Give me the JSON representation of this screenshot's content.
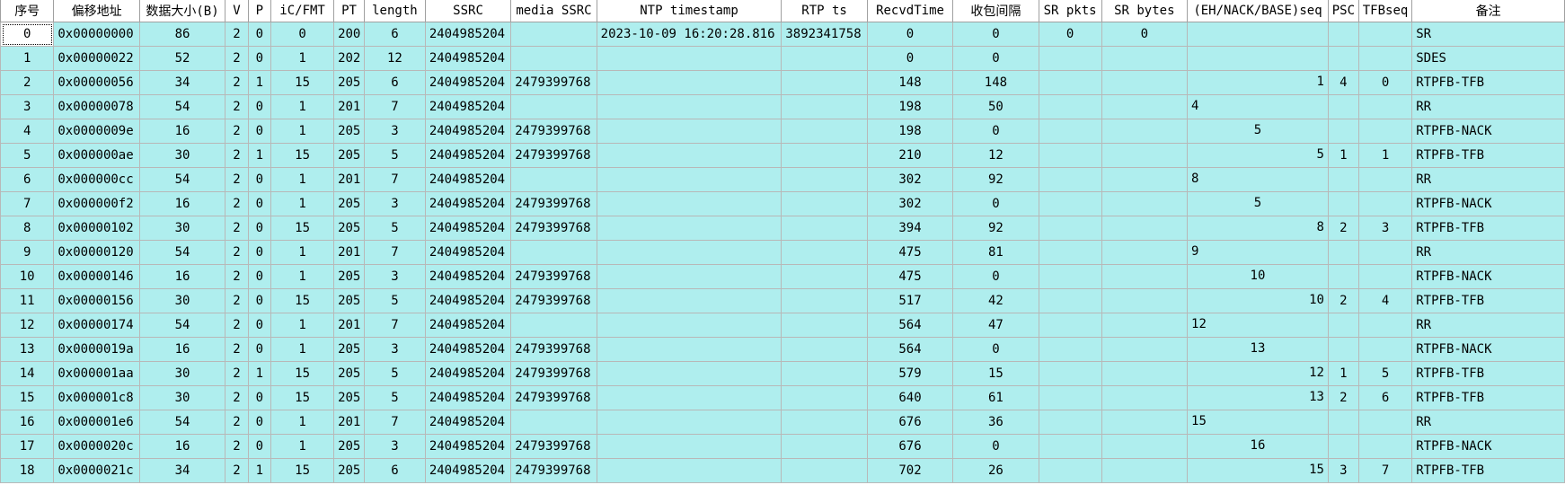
{
  "columns": [
    {
      "key": "idx",
      "label": "序号"
    },
    {
      "key": "addr",
      "label": "偏移地址"
    },
    {
      "key": "size",
      "label": "数据大小(B)"
    },
    {
      "key": "v",
      "label": "V"
    },
    {
      "key": "p",
      "label": "P"
    },
    {
      "key": "ic",
      "label": "iC/FMT"
    },
    {
      "key": "pt",
      "label": "PT"
    },
    {
      "key": "len",
      "label": "length"
    },
    {
      "key": "ssrc",
      "label": "SSRC"
    },
    {
      "key": "media",
      "label": "media SSRC"
    },
    {
      "key": "ntp",
      "label": "NTP timestamp"
    },
    {
      "key": "rtp",
      "label": "RTP ts"
    },
    {
      "key": "recv",
      "label": "RecvdTime"
    },
    {
      "key": "gap",
      "label": "收包间隔"
    },
    {
      "key": "srp",
      "label": "SR pkts"
    },
    {
      "key": "srb",
      "label": "SR bytes"
    },
    {
      "key": "seq",
      "label": "(EH/NACK/BASE)seq"
    },
    {
      "key": "psc",
      "label": "PSC"
    },
    {
      "key": "tfb",
      "label": "TFBseq"
    },
    {
      "key": "note",
      "label": "备注"
    }
  ],
  "rows": [
    {
      "idx": "0",
      "addr": "0x00000000",
      "size": "86",
      "v": "2",
      "p": "0",
      "ic": "0",
      "pt": "200",
      "len": "6",
      "ssrc": "2404985204",
      "media": "",
      "ntp": "2023-10-09 16:20:28.816",
      "rtp": "3892341758",
      "recv": "0",
      "gap": "0",
      "srp": "0",
      "srb": "0",
      "seq": "",
      "seq_align": "left",
      "psc": "",
      "tfb": "",
      "note": "SR"
    },
    {
      "idx": "1",
      "addr": "0x00000022",
      "size": "52",
      "v": "2",
      "p": "0",
      "ic": "1",
      "pt": "202",
      "len": "12",
      "ssrc": "2404985204",
      "media": "",
      "ntp": "",
      "rtp": "",
      "recv": "0",
      "gap": "0",
      "srp": "",
      "srb": "",
      "seq": "",
      "seq_align": "left",
      "psc": "",
      "tfb": "",
      "note": "SDES"
    },
    {
      "idx": "2",
      "addr": "0x00000056",
      "size": "34",
      "v": "2",
      "p": "1",
      "ic": "15",
      "pt": "205",
      "len": "6",
      "ssrc": "2404985204",
      "media": "2479399768",
      "ntp": "",
      "rtp": "",
      "recv": "148",
      "gap": "148",
      "srp": "",
      "srb": "",
      "seq": "1",
      "seq_align": "right",
      "psc": "4",
      "tfb": "0",
      "note": "RTPFB-TFB"
    },
    {
      "idx": "3",
      "addr": "0x00000078",
      "size": "54",
      "v": "2",
      "p": "0",
      "ic": "1",
      "pt": "201",
      "len": "7",
      "ssrc": "2404985204",
      "media": "",
      "ntp": "",
      "rtp": "",
      "recv": "198",
      "gap": "50",
      "srp": "",
      "srb": "",
      "seq": "4",
      "seq_align": "left",
      "psc": "",
      "tfb": "",
      "note": "RR"
    },
    {
      "idx": "4",
      "addr": "0x0000009e",
      "size": "16",
      "v": "2",
      "p": "0",
      "ic": "1",
      "pt": "205",
      "len": "3",
      "ssrc": "2404985204",
      "media": "2479399768",
      "ntp": "",
      "rtp": "",
      "recv": "198",
      "gap": "0",
      "srp": "",
      "srb": "",
      "seq": "5",
      "seq_align": "mid",
      "psc": "",
      "tfb": "",
      "note": "RTPFB-NACK"
    },
    {
      "idx": "5",
      "addr": "0x000000ae",
      "size": "30",
      "v": "2",
      "p": "1",
      "ic": "15",
      "pt": "205",
      "len": "5",
      "ssrc": "2404985204",
      "media": "2479399768",
      "ntp": "",
      "rtp": "",
      "recv": "210",
      "gap": "12",
      "srp": "",
      "srb": "",
      "seq": "5",
      "seq_align": "right",
      "psc": "1",
      "tfb": "1",
      "note": "RTPFB-TFB"
    },
    {
      "idx": "6",
      "addr": "0x000000cc",
      "size": "54",
      "v": "2",
      "p": "0",
      "ic": "1",
      "pt": "201",
      "len": "7",
      "ssrc": "2404985204",
      "media": "",
      "ntp": "",
      "rtp": "",
      "recv": "302",
      "gap": "92",
      "srp": "",
      "srb": "",
      "seq": "8",
      "seq_align": "left",
      "psc": "",
      "tfb": "",
      "note": "RR"
    },
    {
      "idx": "7",
      "addr": "0x000000f2",
      "size": "16",
      "v": "2",
      "p": "0",
      "ic": "1",
      "pt": "205",
      "len": "3",
      "ssrc": "2404985204",
      "media": "2479399768",
      "ntp": "",
      "rtp": "",
      "recv": "302",
      "gap": "0",
      "srp": "",
      "srb": "",
      "seq": "5",
      "seq_align": "mid",
      "psc": "",
      "tfb": "",
      "note": "RTPFB-NACK"
    },
    {
      "idx": "8",
      "addr": "0x00000102",
      "size": "30",
      "v": "2",
      "p": "0",
      "ic": "15",
      "pt": "205",
      "len": "5",
      "ssrc": "2404985204",
      "media": "2479399768",
      "ntp": "",
      "rtp": "",
      "recv": "394",
      "gap": "92",
      "srp": "",
      "srb": "",
      "seq": "8",
      "seq_align": "right",
      "psc": "2",
      "tfb": "3",
      "note": "RTPFB-TFB"
    },
    {
      "idx": "9",
      "addr": "0x00000120",
      "size": "54",
      "v": "2",
      "p": "0",
      "ic": "1",
      "pt": "201",
      "len": "7",
      "ssrc": "2404985204",
      "media": "",
      "ntp": "",
      "rtp": "",
      "recv": "475",
      "gap": "81",
      "srp": "",
      "srb": "",
      "seq": "9",
      "seq_align": "left",
      "psc": "",
      "tfb": "",
      "note": "RR"
    },
    {
      "idx": "10",
      "addr": "0x00000146",
      "size": "16",
      "v": "2",
      "p": "0",
      "ic": "1",
      "pt": "205",
      "len": "3",
      "ssrc": "2404985204",
      "media": "2479399768",
      "ntp": "",
      "rtp": "",
      "recv": "475",
      "gap": "0",
      "srp": "",
      "srb": "",
      "seq": "10",
      "seq_align": "mid",
      "psc": "",
      "tfb": "",
      "note": "RTPFB-NACK"
    },
    {
      "idx": "11",
      "addr": "0x00000156",
      "size": "30",
      "v": "2",
      "p": "0",
      "ic": "15",
      "pt": "205",
      "len": "5",
      "ssrc": "2404985204",
      "media": "2479399768",
      "ntp": "",
      "rtp": "",
      "recv": "517",
      "gap": "42",
      "srp": "",
      "srb": "",
      "seq": "10",
      "seq_align": "right",
      "psc": "2",
      "tfb": "4",
      "note": "RTPFB-TFB"
    },
    {
      "idx": "12",
      "addr": "0x00000174",
      "size": "54",
      "v": "2",
      "p": "0",
      "ic": "1",
      "pt": "201",
      "len": "7",
      "ssrc": "2404985204",
      "media": "",
      "ntp": "",
      "rtp": "",
      "recv": "564",
      "gap": "47",
      "srp": "",
      "srb": "",
      "seq": "12",
      "seq_align": "left",
      "psc": "",
      "tfb": "",
      "note": "RR"
    },
    {
      "idx": "13",
      "addr": "0x0000019a",
      "size": "16",
      "v": "2",
      "p": "0",
      "ic": "1",
      "pt": "205",
      "len": "3",
      "ssrc": "2404985204",
      "media": "2479399768",
      "ntp": "",
      "rtp": "",
      "recv": "564",
      "gap": "0",
      "srp": "",
      "srb": "",
      "seq": "13",
      "seq_align": "mid",
      "psc": "",
      "tfb": "",
      "note": "RTPFB-NACK"
    },
    {
      "idx": "14",
      "addr": "0x000001aa",
      "size": "30",
      "v": "2",
      "p": "1",
      "ic": "15",
      "pt": "205",
      "len": "5",
      "ssrc": "2404985204",
      "media": "2479399768",
      "ntp": "",
      "rtp": "",
      "recv": "579",
      "gap": "15",
      "srp": "",
      "srb": "",
      "seq": "12",
      "seq_align": "right",
      "psc": "1",
      "tfb": "5",
      "note": "RTPFB-TFB"
    },
    {
      "idx": "15",
      "addr": "0x000001c8",
      "size": "30",
      "v": "2",
      "p": "0",
      "ic": "15",
      "pt": "205",
      "len": "5",
      "ssrc": "2404985204",
      "media": "2479399768",
      "ntp": "",
      "rtp": "",
      "recv": "640",
      "gap": "61",
      "srp": "",
      "srb": "",
      "seq": "13",
      "seq_align": "right",
      "psc": "2",
      "tfb": "6",
      "note": "RTPFB-TFB"
    },
    {
      "idx": "16",
      "addr": "0x000001e6",
      "size": "54",
      "v": "2",
      "p": "0",
      "ic": "1",
      "pt": "201",
      "len": "7",
      "ssrc": "2404985204",
      "media": "",
      "ntp": "",
      "rtp": "",
      "recv": "676",
      "gap": "36",
      "srp": "",
      "srb": "",
      "seq": "15",
      "seq_align": "left",
      "psc": "",
      "tfb": "",
      "note": "RR"
    },
    {
      "idx": "17",
      "addr": "0x0000020c",
      "size": "16",
      "v": "2",
      "p": "0",
      "ic": "1",
      "pt": "205",
      "len": "3",
      "ssrc": "2404985204",
      "media": "2479399768",
      "ntp": "",
      "rtp": "",
      "recv": "676",
      "gap": "0",
      "srp": "",
      "srb": "",
      "seq": "16",
      "seq_align": "mid",
      "psc": "",
      "tfb": "",
      "note": "RTPFB-NACK"
    },
    {
      "idx": "18",
      "addr": "0x0000021c",
      "size": "34",
      "v": "2",
      "p": "1",
      "ic": "15",
      "pt": "205",
      "len": "6",
      "ssrc": "2404985204",
      "media": "2479399768",
      "ntp": "",
      "rtp": "",
      "recv": "702",
      "gap": "26",
      "srp": "",
      "srb": "",
      "seq": "15",
      "seq_align": "right",
      "psc": "3",
      "tfb": "7",
      "note": "RTPFB-TFB"
    }
  ],
  "colors": {
    "row_bg": "#afeeee",
    "header_bg": "#ffffff",
    "grid_line": "#b8b8b8"
  },
  "selected_row": 0
}
